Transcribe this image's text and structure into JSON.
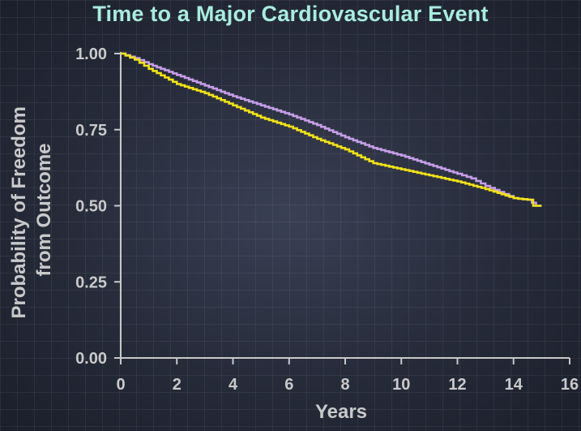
{
  "chart_data": {
    "type": "line",
    "title": "Time to a Major Cardiovascular Event",
    "xlabel": "Years",
    "ylabel_lines": [
      "Probability of Freedom",
      "from Outcome"
    ],
    "xlim": [
      0,
      16
    ],
    "ylim": [
      0,
      1
    ],
    "x_ticks": [
      "0",
      "2",
      "4",
      "6",
      "8",
      "10",
      "12",
      "14",
      "16"
    ],
    "y_ticks": [
      "0.00",
      "0.25",
      "0.50",
      "0.75",
      "1.00"
    ],
    "grid": true,
    "series": [
      {
        "color": "#c59ee8",
        "x": [
          0,
          0.5,
          1,
          2,
          3,
          4,
          5,
          6,
          7,
          8,
          9,
          10,
          11,
          12,
          12.5,
          13,
          13.5,
          14,
          14.5,
          14.8,
          15
        ],
        "y": [
          1.0,
          0.985,
          0.965,
          0.93,
          0.895,
          0.86,
          0.83,
          0.8,
          0.765,
          0.725,
          0.69,
          0.665,
          0.635,
          0.605,
          0.59,
          0.565,
          0.545,
          0.525,
          0.52,
          0.5,
          0.5
        ]
      },
      {
        "color": "#f2e218",
        "x": [
          0,
          0.5,
          1,
          2,
          3,
          4,
          5,
          6,
          7,
          8,
          9,
          10,
          11,
          12,
          13,
          14,
          14.5,
          14.7,
          14.7,
          15
        ],
        "y": [
          1.0,
          0.98,
          0.95,
          0.9,
          0.87,
          0.83,
          0.79,
          0.76,
          0.72,
          0.685,
          0.64,
          0.62,
          0.6,
          0.58,
          0.555,
          0.525,
          0.52,
          0.52,
          0.5,
          0.5
        ]
      }
    ]
  },
  "colors": {
    "title": "#a9ecdf",
    "axis": "#c8c8c8",
    "text": "#c9c9c9"
  }
}
